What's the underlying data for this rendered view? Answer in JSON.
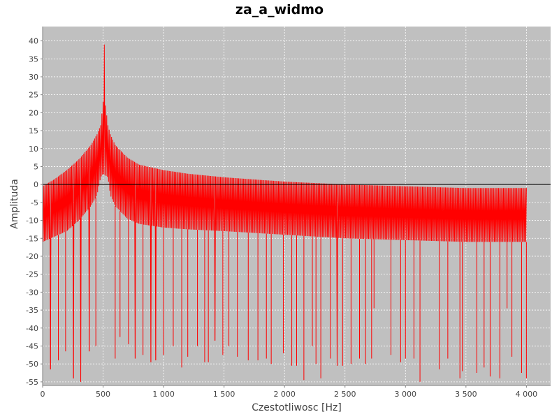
{
  "chart_data": {
    "type": "line",
    "title": "za_a_widmo",
    "xlabel": "Czestotliwosc [Hz]",
    "ylabel": "Amplituda",
    "xlim": [
      0,
      4200
    ],
    "ylim": [
      -56,
      44
    ],
    "x_ticks": [
      0,
      500,
      1000,
      1500,
      2000,
      2500,
      3000,
      3500,
      4000
    ],
    "x_tick_labels": [
      "0",
      "500",
      "1 000",
      "1 500",
      "2 000",
      "2 500",
      "3 000",
      "3 500",
      "4 000"
    ],
    "y_ticks": [
      -55,
      -50,
      -45,
      -40,
      -35,
      -30,
      -25,
      -20,
      -15,
      -10,
      -5,
      0,
      5,
      10,
      15,
      20,
      25,
      30,
      35,
      40
    ],
    "grid": true,
    "zero_line": true,
    "legend": "none",
    "series": [
      {
        "name": "widmo",
        "color": "#ff0000",
        "upper_envelope": {
          "x": [
            0,
            100,
            200,
            300,
            400,
            450,
            480,
            500,
            510,
            520,
            540,
            560,
            600,
            700,
            800,
            1000,
            1200,
            1500,
            2000,
            2500,
            3000,
            3500,
            4000
          ],
          "y": [
            -0.5,
            1.5,
            4,
            7,
            11,
            14,
            16.5,
            23,
            39,
            22,
            16.5,
            14,
            11,
            7.5,
            5.5,
            4,
            3,
            2,
            0.8,
            0,
            -0.5,
            -1,
            -1
          ]
        },
        "lower_envelope": {
          "x": [
            0,
            100,
            200,
            300,
            400,
            450,
            480,
            500,
            540,
            560,
            600,
            700,
            800,
            1000,
            1200,
            1500,
            2000,
            2500,
            3000,
            3500,
            4000
          ],
          "y": [
            -16,
            -14.5,
            -13,
            -10,
            -6,
            -3,
            2,
            3,
            2,
            -3,
            -6,
            -9.5,
            -11,
            -12,
            -12.5,
            -13,
            -14,
            -15,
            -15.5,
            -16,
            -16
          ]
        },
        "deep_dips": {
          "x": [
            65,
            130,
            190,
            255,
            315,
            385,
            440,
            600,
            640,
            710,
            765,
            830,
            895,
            935,
            1000,
            1080,
            1150,
            1200,
            1280,
            1340,
            1370,
            1425,
            1490,
            1540,
            1610,
            1700,
            1780,
            1850,
            1890,
            1990,
            2060,
            2100,
            2160,
            2230,
            2260,
            2300,
            2380,
            2435,
            2480,
            2550,
            2620,
            2670,
            2720,
            2740,
            2880,
            2960,
            3000,
            3070,
            3120,
            3280,
            3350,
            3450,
            3470,
            3590,
            3650,
            3700,
            3780,
            3840,
            3880,
            3960,
            4000
          ],
          "y": [
            -51.5,
            -49,
            -46.5,
            -54,
            -55,
            -46.5,
            -45,
            -48.5,
            -42.5,
            -44.5,
            -48.5,
            -47.5,
            -49.5,
            -49,
            -47.5,
            -45,
            -51,
            -48,
            -45,
            -49.5,
            -49.5,
            -43.5,
            -47.5,
            -45,
            -48,
            -49,
            -49,
            -48.5,
            -50,
            -47,
            -50.5,
            -50.5,
            -54.5,
            -45,
            -50,
            -54,
            -48.5,
            -50.5,
            -50.5,
            -50,
            -48.5,
            -50,
            -48.5,
            -34.5,
            -47.5,
            -49.5,
            -48.5,
            -48.5,
            -55,
            -51.5,
            -48.5,
            -54,
            -52,
            -52.5,
            -51,
            -53.5,
            -54,
            -34.5,
            -48,
            -52.5,
            -54
          ]
        }
      }
    ]
  }
}
